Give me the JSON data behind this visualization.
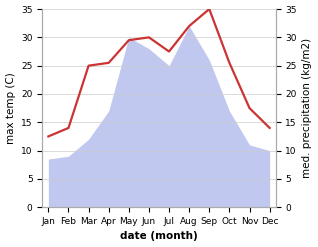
{
  "months": [
    "Jan",
    "Feb",
    "Mar",
    "Apr",
    "May",
    "Jun",
    "Jul",
    "Aug",
    "Sep",
    "Oct",
    "Nov",
    "Dec"
  ],
  "temperature": [
    12.5,
    14.0,
    25.0,
    25.5,
    29.5,
    30.0,
    27.5,
    32.0,
    35.0,
    25.5,
    17.5,
    14.0
  ],
  "precipitation": [
    8.5,
    9.0,
    12.0,
    17.0,
    30.0,
    28.0,
    25.0,
    32.0,
    26.0,
    17.0,
    11.0,
    10.0
  ],
  "temp_color": "#cc3333",
  "precip_color": "#c0c8f0",
  "ylim_left": [
    0,
    35
  ],
  "ylim_right": [
    0,
    35
  ],
  "xlabel": "date (month)",
  "ylabel_left": "max temp (C)",
  "ylabel_right": "med. precipitation (kg/m2)",
  "bg_color": "#ffffff",
  "grid_color": "#cccccc",
  "label_fontsize": 7.5,
  "tick_fontsize": 6.5,
  "yticks": [
    0,
    5,
    10,
    15,
    20,
    25,
    30,
    35
  ]
}
